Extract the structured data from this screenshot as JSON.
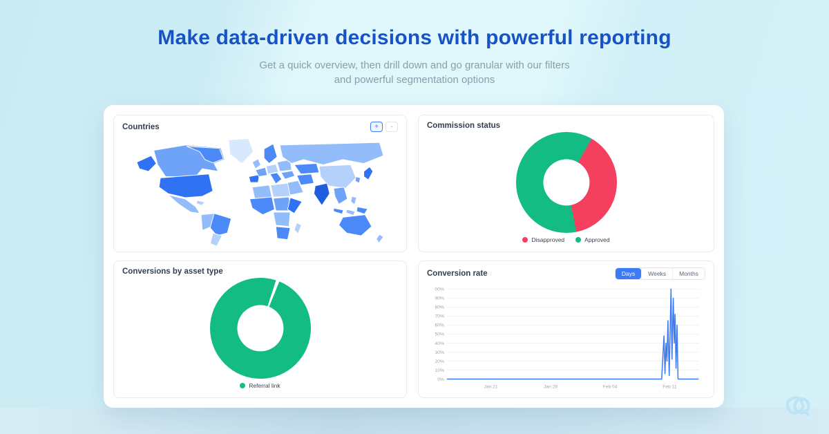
{
  "page": {
    "title": "Make data-driven decisions with powerful reporting",
    "subtitle_line1": "Get a quick overview, then drill down and go granular with our filters",
    "subtitle_line2": "and powerful segmentation options"
  },
  "colors": {
    "title_blue": "#1752C7",
    "subtitle_gray": "#8C9CAD",
    "accent_blue": "#3B7BF6",
    "approved_green": "#12BC82",
    "disapproved_red": "#F43F5E",
    "line_blue": "#3C7DF5",
    "logo_light_blue": "#BDE3F6",
    "panel_border": "#E8EBF0"
  },
  "panels": {
    "countries": {
      "title": "Countries",
      "zoom_in_label": "+",
      "zoom_out_label": "-",
      "palette": [
        "#D8E9FD",
        "#B4D1FB",
        "#93BCFA",
        "#6FA3F8",
        "#4A89F7",
        "#2F72F3",
        "#1F5DE0"
      ]
    },
    "commission_status": {
      "title": "Commission status"
    },
    "conversions": {
      "title": "Conversions by asset type"
    },
    "conversion_rate": {
      "title": "Conversion rate",
      "tabs": [
        "Days",
        "Weeks",
        "Months"
      ],
      "active_tab": "Days"
    }
  },
  "chart_data": [
    {
      "type": "choropleth",
      "title": "Countries",
      "region": "world",
      "note": "world map shaded in blues, no numeric labels visible"
    },
    {
      "type": "pie",
      "donut": true,
      "title": "Commission status",
      "labels": [
        "Disapproved",
        "Approved"
      ],
      "values": [
        38.5,
        61.5
      ],
      "colors": [
        "#F43F5E",
        "#12BC82"
      ],
      "start_angle_deg": 30,
      "legend_position": "bottom"
    },
    {
      "type": "pie",
      "donut": true,
      "title": "Conversions by asset type",
      "labels": [
        "Referral link"
      ],
      "values": [
        100
      ],
      "colors": [
        "#12BC82"
      ],
      "divider_angle_deg": 18,
      "legend_position": "bottom"
    },
    {
      "type": "line",
      "title": "Conversion rate",
      "ylim": [
        0,
        100
      ],
      "grid": true,
      "y_ticks": [
        "00%",
        "90%",
        "80%",
        "70%",
        "60%",
        "50%",
        "40%",
        "30%",
        "20%",
        "10%",
        "0%"
      ],
      "x_ticks": [
        {
          "label": "Jan 21",
          "pos": 0.175
        },
        {
          "label": "Jan 28",
          "pos": 0.412
        },
        {
          "label": "Feb 04",
          "pos": 0.648
        },
        {
          "label": "Feb 11",
          "pos": 0.885
        }
      ],
      "series": [
        {
          "name": "Conversion rate",
          "color": "#3C7DF5",
          "points": [
            [
              0,
              0
            ],
            [
              0.853,
              0
            ],
            [
              0.862,
              48
            ],
            [
              0.866,
              6
            ],
            [
              0.87,
              40
            ],
            [
              0.874,
              20
            ],
            [
              0.878,
              65
            ],
            [
              0.883,
              4
            ],
            [
              0.89,
              100
            ],
            [
              0.894,
              22
            ],
            [
              0.899,
              90
            ],
            [
              0.903,
              40
            ],
            [
              0.906,
              72
            ],
            [
              0.91,
              12
            ],
            [
              0.914,
              60
            ],
            [
              0.918,
              0
            ],
            [
              1,
              0
            ]
          ]
        }
      ]
    }
  ]
}
